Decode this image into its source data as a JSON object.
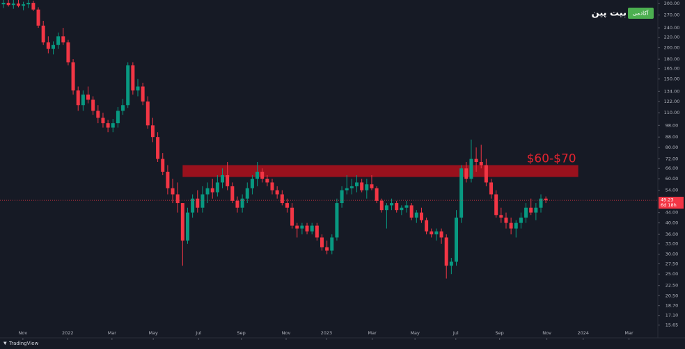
{
  "chart_data": {
    "type": "candlestick",
    "log_scale": true,
    "up_color": "#089981",
    "down_color": "#f23645",
    "open": [
      298,
      302,
      296,
      300,
      294,
      298,
      302,
      284,
      245,
      210,
      198,
      205,
      222,
      210,
      175,
      135,
      118,
      130,
      124,
      112,
      105,
      100,
      96,
      100,
      112,
      118,
      170,
      135,
      140,
      122,
      98,
      88,
      72,
      64,
      55,
      52,
      48,
      34,
      44,
      50,
      46,
      52,
      55,
      53,
      58,
      62,
      56,
      49,
      46,
      50,
      55,
      60,
      64,
      60,
      58,
      54,
      52,
      48,
      46,
      39,
      38,
      39,
      37,
      39,
      35,
      32,
      31,
      35,
      48,
      54,
      55,
      56,
      58,
      54,
      57,
      55,
      49,
      45,
      47,
      48,
      45,
      46,
      47,
      42,
      44,
      41,
      37,
      36,
      37,
      35,
      27,
      28,
      42,
      66,
      60,
      72,
      70,
      68,
      58,
      52,
      43,
      42,
      40,
      38,
      40,
      42,
      46,
      44,
      46,
      50
    ],
    "high": [
      312,
      318,
      310,
      314,
      305,
      310,
      308,
      290,
      256,
      222,
      212,
      230,
      240,
      215,
      180,
      140,
      135,
      140,
      128,
      118,
      110,
      103,
      104,
      116,
      125,
      175,
      175,
      150,
      145,
      128,
      105,
      92,
      76,
      68,
      60,
      58,
      48,
      46,
      52,
      54,
      56,
      58,
      60,
      62,
      66,
      70,
      58,
      51,
      52,
      58,
      62,
      70,
      66,
      62,
      60,
      56,
      54,
      50,
      48,
      40,
      40,
      40,
      40,
      40,
      36,
      34,
      36,
      50,
      56,
      62,
      60,
      62,
      60,
      60,
      62,
      56,
      50,
      48,
      50,
      49,
      47,
      49,
      48,
      45,
      46,
      42,
      38,
      38,
      38,
      36,
      29,
      45,
      68,
      70,
      86,
      80,
      82,
      72,
      60,
      54,
      46,
      44,
      42,
      41,
      44,
      48,
      50,
      48,
      52,
      51
    ],
    "low": [
      288,
      292,
      286,
      290,
      282,
      288,
      280,
      240,
      205,
      190,
      188,
      198,
      205,
      170,
      130,
      112,
      112,
      120,
      108,
      100,
      96,
      92,
      92,
      96,
      108,
      115,
      130,
      128,
      118,
      95,
      84,
      70,
      62,
      52,
      48,
      44,
      27,
      33,
      42,
      44,
      44,
      48,
      50,
      51,
      55,
      54,
      48,
      44,
      44,
      48,
      52,
      56,
      58,
      56,
      52,
      50,
      47,
      44,
      38,
      35,
      36,
      36,
      36,
      34,
      31,
      30,
      30,
      34,
      46,
      52,
      52,
      53,
      53,
      50,
      54,
      48,
      44,
      38,
      45,
      44,
      43,
      44,
      41,
      40,
      40,
      36,
      35,
      34,
      33,
      24,
      25,
      27,
      40,
      58,
      58,
      64,
      66,
      56,
      50,
      42,
      40,
      38,
      36,
      35,
      38,
      40,
      43,
      41,
      44,
      48
    ],
    "close": [
      302,
      296,
      300,
      294,
      298,
      302,
      284,
      245,
      210,
      198,
      205,
      222,
      210,
      175,
      135,
      118,
      130,
      124,
      112,
      105,
      100,
      96,
      100,
      112,
      118,
      170,
      135,
      140,
      122,
      98,
      88,
      72,
      64,
      55,
      52,
      48,
      34,
      44,
      50,
      46,
      52,
      55,
      53,
      58,
      62,
      56,
      49,
      46,
      50,
      55,
      60,
      64,
      60,
      58,
      54,
      52,
      48,
      46,
      39,
      38,
      39,
      37,
      39,
      35,
      32,
      31,
      35,
      48,
      54,
      55,
      56,
      58,
      54,
      57,
      55,
      49,
      45,
      47,
      48,
      45,
      46,
      47,
      42,
      44,
      41,
      37,
      36,
      37,
      35,
      27,
      28,
      42,
      66,
      60,
      72,
      70,
      68,
      58,
      52,
      43,
      42,
      40,
      38,
      40,
      42,
      46,
      44,
      46,
      50,
      49.23
    ],
    "xlim": [
      -0.7,
      131.5
    ],
    "xticks": [
      {
        "value": 3.9,
        "label": "Nov"
      },
      {
        "value": 12.9,
        "label": "2022"
      },
      {
        "value": 21.8,
        "label": "Mar"
      },
      {
        "value": 30.1,
        "label": "May"
      },
      {
        "value": 39.2,
        "label": "Jul"
      },
      {
        "value": 47.8,
        "label": "Sep"
      },
      {
        "value": 56.8,
        "label": "Nov"
      },
      {
        "value": 64.9,
        "label": "2023"
      },
      {
        "value": 74.1,
        "label": "Mar"
      },
      {
        "value": 82.7,
        "label": "May"
      },
      {
        "value": 90.9,
        "label": "Jul"
      },
      {
        "value": 99.7,
        "label": "Sep"
      },
      {
        "value": 109.2,
        "label": "Nov"
      },
      {
        "value": 116.5,
        "label": "2024"
      },
      {
        "value": 125.7,
        "label": "Mar"
      }
    ],
    "ylim": [
      14,
      310
    ],
    "yticks": [
      {
        "value": 300,
        "label": "300.00"
      },
      {
        "value": 270,
        "label": "270.00"
      },
      {
        "value": 240,
        "label": "240.00"
      },
      {
        "value": 220,
        "label": "220.00"
      },
      {
        "value": 200,
        "label": "200.00"
      },
      {
        "value": 180,
        "label": "180.00"
      },
      {
        "value": 165,
        "label": "165.00"
      },
      {
        "value": 150,
        "label": "150.00"
      },
      {
        "value": 134,
        "label": "134.00"
      },
      {
        "value": 122,
        "label": "122.00"
      },
      {
        "value": 110,
        "label": "110.00"
      },
      {
        "value": 98,
        "label": "98.00"
      },
      {
        "value": 88,
        "label": "88.00"
      },
      {
        "value": 80,
        "label": "80.00"
      },
      {
        "value": 72,
        "label": "72.00"
      },
      {
        "value": 66,
        "label": "66.00"
      },
      {
        "value": 60,
        "label": "60.00"
      },
      {
        "value": 54,
        "label": "54.00"
      },
      {
        "value": 44,
        "label": "44.00"
      },
      {
        "value": 40,
        "label": "40.00"
      },
      {
        "value": 36,
        "label": "36.00"
      },
      {
        "value": 33,
        "label": "33.00"
      },
      {
        "value": 30,
        "label": "30.00"
      },
      {
        "value": 27.5,
        "label": "27.50"
      },
      {
        "value": 25,
        "label": "25.00"
      },
      {
        "value": 22.5,
        "label": "22.50"
      },
      {
        "value": 20.5,
        "label": "20.50"
      },
      {
        "value": 18.7,
        "label": "18.70"
      },
      {
        "value": 17.1,
        "label": "17.10"
      },
      {
        "value": 15.65,
        "label": "15.65"
      }
    ],
    "current_price": {
      "value": 49.23,
      "label": "49.23",
      "countdown": "6d 18h",
      "color": "#f23645"
    },
    "zone": {
      "label": "$60-$70",
      "low": 61,
      "high": 68,
      "x_start": 36,
      "x_end": 115.5,
      "color": "#b0101c"
    },
    "logo": {
      "name": "بیت پین",
      "tag": "آکادمی"
    },
    "watermark": "TradingView"
  }
}
